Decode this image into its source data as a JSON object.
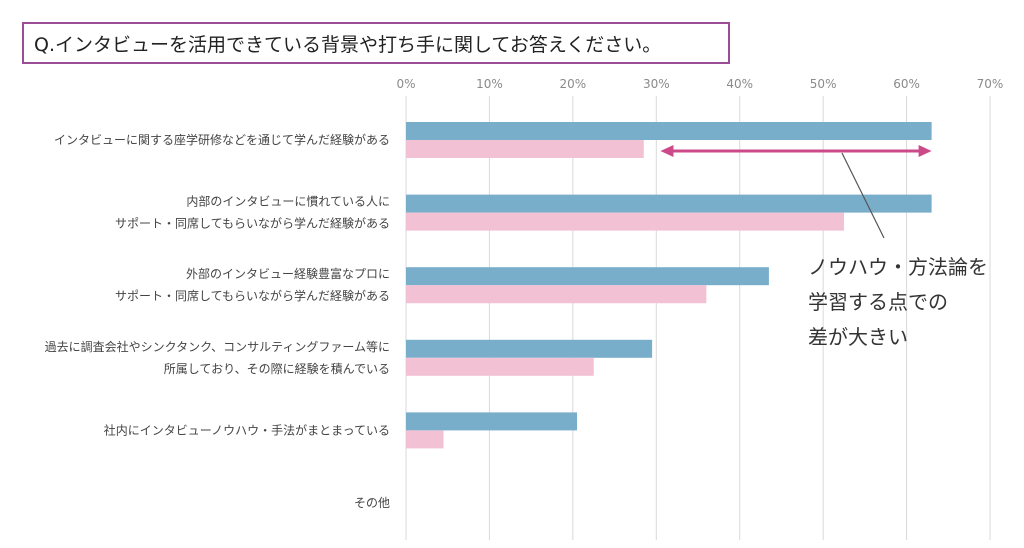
{
  "question": "Q.インタビューを活用できている背景や打ち手に関してお答えください。",
  "callout": {
    "line1": "ノウハウ・方法論を",
    "line2": "学習する点での",
    "line3": "差が大きい"
  },
  "colors": {
    "series_1": "#79aecb",
    "series_2": "#f3c1d4",
    "arrow": "#cc4a8a",
    "frame": "#9b4d96",
    "grid": "#d9d9d9"
  },
  "chart_data": {
    "type": "bar",
    "orientation": "horizontal",
    "xlim": [
      0,
      70
    ],
    "xticks": [
      "0%",
      "10%",
      "20%",
      "30%",
      "40%",
      "50%",
      "60%",
      "70%"
    ],
    "grid": true,
    "categories": [
      [
        "インタビューに関する座学研修などを通じて学んだ経験がある"
      ],
      [
        "内部のインタビューに慣れている人に",
        "サポート・同席してもらいながら学んだ経験がある"
      ],
      [
        "外部のインタビュー経験豊富なプロに",
        "サポート・同席してもらいながら学んだ経験がある"
      ],
      [
        "過去に調査会社やシンクタンク、コンサルティングファーム等に",
        "所属しており、その際に経験を積んでいる"
      ],
      [
        "社内にインタビューノウハウ・手法がまとまっている"
      ],
      [
        "その他"
      ]
    ],
    "series": [
      {
        "values": [
          63.0,
          63.0,
          43.5,
          29.5,
          20.5,
          0
        ]
      },
      {
        "values": [
          28.5,
          52.5,
          36.0,
          22.5,
          4.5,
          0
        ]
      }
    ],
    "annotation": {
      "type": "double-arrow",
      "from": 30.5,
      "to": 63.0,
      "category_index": 0
    }
  }
}
